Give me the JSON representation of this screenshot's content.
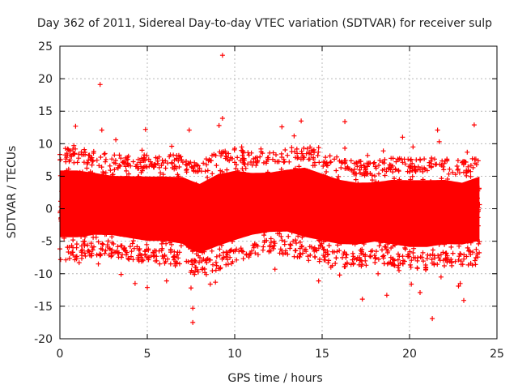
{
  "chart_data": {
    "type": "scatter",
    "title": "Day 362 of 2011, Sidereal Day-to-day VTEC variation (SDTVAR) for receiver sulp",
    "xlabel": "GPS time / hours",
    "ylabel": "SDTVAR / TECUs",
    "xlim": [
      0,
      25
    ],
    "ylim": [
      -20,
      25
    ],
    "x_ticks": [
      0,
      5,
      10,
      15,
      20,
      25
    ],
    "y_ticks": [
      -20,
      -15,
      -10,
      -5,
      0,
      5,
      10,
      15,
      20,
      25
    ],
    "x_tick_labels": [
      "0",
      "5",
      "10",
      "15",
      "20",
      "25"
    ],
    "y_tick_labels": [
      "-20",
      "-15",
      "-10",
      "-5",
      "0",
      "5",
      "10",
      "15",
      "20",
      "25"
    ],
    "grid": true,
    "grid_style": "dotted",
    "marker": "+",
    "marker_color": "#ff0000",
    "series": [
      {
        "name": "SDTVAR",
        "x_range": [
          0,
          24
        ],
        "note": "dense band of observations spanning roughly -6 to +7 TECU across the full day",
        "envelope": {
          "x": [
            0,
            1,
            2,
            3,
            4,
            5,
            6,
            7,
            7.5,
            8,
            9,
            10,
            11,
            12,
            13,
            14,
            15,
            16,
            17,
            18,
            19,
            20,
            21,
            22,
            23,
            24
          ],
          "upper": [
            7.5,
            7.5,
            7.0,
            6.5,
            6.5,
            6.5,
            6.5,
            6.5,
            6.0,
            5.5,
            7.0,
            7.5,
            7.0,
            7.0,
            7.5,
            8.0,
            7.0,
            6.0,
            5.5,
            5.5,
            6.0,
            6.0,
            6.0,
            6.0,
            5.5,
            6.5
          ],
          "lower": [
            -6.0,
            -6.0,
            -5.5,
            -5.5,
            -6.0,
            -6.5,
            -6.5,
            -7.0,
            -8.0,
            -8.5,
            -7.5,
            -6.5,
            -5.5,
            -5.0,
            -5.0,
            -6.0,
            -6.5,
            -7.0,
            -7.0,
            -6.5,
            -7.0,
            -7.5,
            -7.5,
            -7.0,
            -7.0,
            -6.5
          ]
        },
        "outliers": [
          {
            "x": 9.3,
            "y": 23.6
          },
          {
            "x": 2.3,
            "y": 19.1
          },
          {
            "x": 9.3,
            "y": 13.9
          },
          {
            "x": 13.8,
            "y": 13.5
          },
          {
            "x": 16.3,
            "y": 13.4
          },
          {
            "x": 23.7,
            "y": 12.9
          },
          {
            "x": 0.9,
            "y": 12.7
          },
          {
            "x": 4.9,
            "y": 12.2
          },
          {
            "x": 7.4,
            "y": 12.1
          },
          {
            "x": 12.7,
            "y": 12.6
          },
          {
            "x": 21.6,
            "y": 12.1
          },
          {
            "x": 9.1,
            "y": 12.8
          },
          {
            "x": 2.4,
            "y": 12.1
          },
          {
            "x": 19.6,
            "y": 11.0
          },
          {
            "x": 3.2,
            "y": 10.6
          },
          {
            "x": 13.4,
            "y": 11.2
          },
          {
            "x": 7.6,
            "y": -15.3
          },
          {
            "x": 7.6,
            "y": -17.5
          },
          {
            "x": 7.5,
            "y": -12.2
          },
          {
            "x": 21.3,
            "y": -16.9
          },
          {
            "x": 17.3,
            "y": -13.9
          },
          {
            "x": 23.1,
            "y": -14.1
          },
          {
            "x": 22.9,
            "y": -11.5
          },
          {
            "x": 4.3,
            "y": -11.5
          },
          {
            "x": 5.0,
            "y": -12.1
          },
          {
            "x": 6.1,
            "y": -11.1
          },
          {
            "x": 8.6,
            "y": -11.6
          },
          {
            "x": 8.9,
            "y": -11.3
          },
          {
            "x": 14.8,
            "y": -11.1
          },
          {
            "x": 18.7,
            "y": -13.3
          },
          {
            "x": 20.6,
            "y": -12.9
          },
          {
            "x": 20.1,
            "y": -11.6
          },
          {
            "x": 22.8,
            "y": -11.9
          },
          {
            "x": 1.1,
            "y": -8.3
          },
          {
            "x": 2.2,
            "y": -8.5
          },
          {
            "x": 12.3,
            "y": -9.3
          },
          {
            "x": 15.5,
            "y": -9.0
          },
          {
            "x": 16.0,
            "y": -10.2
          },
          {
            "x": 18.2,
            "y": -10.0
          },
          {
            "x": 19.4,
            "y": -9.5
          },
          {
            "x": 21.8,
            "y": -10.5
          },
          {
            "x": 3.5,
            "y": -10.1
          },
          {
            "x": 0.8,
            "y": 9.7
          },
          {
            "x": 4.7,
            "y": 9.0
          },
          {
            "x": 6.4,
            "y": 9.6
          },
          {
            "x": 10.4,
            "y": 9.5
          },
          {
            "x": 11.5,
            "y": 9.2
          },
          {
            "x": 14.8,
            "y": 9.4
          },
          {
            "x": 16.3,
            "y": 9.3
          },
          {
            "x": 18.5,
            "y": 8.9
          },
          {
            "x": 20.2,
            "y": 9.5
          },
          {
            "x": 21.7,
            "y": 10.3
          },
          {
            "x": 23.3,
            "y": 8.7
          },
          {
            "x": 17.6,
            "y": 8.2
          }
        ]
      }
    ]
  }
}
